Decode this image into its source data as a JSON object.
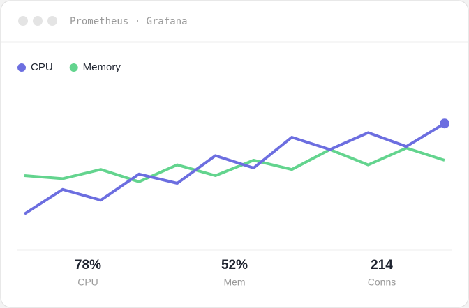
{
  "window_title": "Prometheus · Grafana",
  "chart_data": {
    "type": "line",
    "ylim": [
      0,
      100
    ],
    "series": [
      {
        "name": "CPU",
        "color": "#6c6ee0",
        "values": [
          15,
          31,
          24,
          41,
          35,
          53,
          45,
          65,
          57,
          68,
          59,
          74
        ]
      },
      {
        "name": "Memory",
        "color": "#63d48e",
        "values": [
          40,
          38,
          44,
          36,
          47,
          40,
          50,
          44,
          57,
          47,
          58,
          50
        ]
      }
    ]
  },
  "stats": [
    {
      "value": "78%",
      "label": "CPU"
    },
    {
      "value": "52%",
      "label": "Mem"
    },
    {
      "value": "214",
      "label": "Conns"
    }
  ]
}
